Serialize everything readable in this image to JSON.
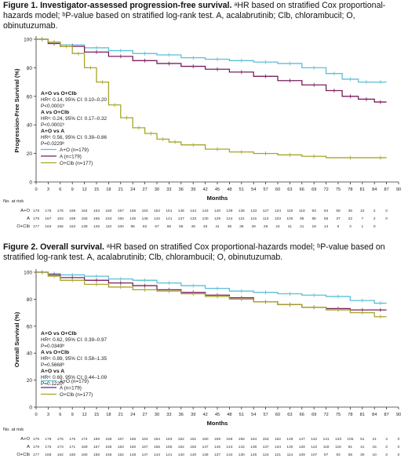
{
  "figures": [
    {
      "caption_bold": "Figure 1. Investigator-assessed progression-free survival.",
      "caption_rest": " ᵃHR based on stratified Cox proportional-hazards model; ᵇP-value based on stratified log-rank test. A, acalabrutinib; Clb, chlorambucil; O, obinutuzumab."
    },
    {
      "caption_bold": "Figure 2. Overall survival.",
      "caption_rest": " ᵃHR based on stratified Cox proportional-hazards model; ᵇP-value based on stratified log-rank test. A, acalabrutinib; Clb, chlorambucil; O, obinutuzumab."
    }
  ],
  "colors": {
    "A+O": "#5bbfd9",
    "A": "#7a1f5c",
    "O+Clb": "#a6a52a"
  },
  "chart_data": [
    {
      "type": "line",
      "ylabel": "Progression-Free Survival (%)",
      "xlabel": "Months",
      "xlim": [
        0,
        90
      ],
      "ylim": [
        0,
        100
      ],
      "xticks": [
        0,
        3,
        6,
        9,
        12,
        15,
        18,
        21,
        24,
        27,
        30,
        33,
        36,
        39,
        42,
        45,
        48,
        51,
        54,
        57,
        60,
        63,
        66,
        69,
        72,
        75,
        78,
        81,
        84,
        87,
        90
      ],
      "yticks": [
        0,
        20,
        40,
        60,
        80,
        100
      ],
      "legend": [
        "A+O (n=179)",
        "A (n=179)",
        "O+Clb (n=177)"
      ],
      "legend_position": "bottom-left",
      "stats": [
        {
          "title": "A+O vs O+Clb",
          "lines": [
            "HRᵃ: 0.14, 95% CI: 0.10–0.20",
            "P<0.0001ᵇ"
          ]
        },
        {
          "title": "A vs O+Clb",
          "lines": [
            "HRᵃ: 0.24, 95% CI: 0.17–0.32",
            "P<0.0001ᵇ"
          ]
        },
        {
          "title": "A+O vs A",
          "lines": [
            "HRᵃ: 0.56, 95% CI: 0.39–0.86",
            "P=0.0229ᵇ"
          ]
        }
      ],
      "series": [
        {
          "name": "A+O",
          "x": [
            0,
            3,
            6,
            12,
            18,
            24,
            30,
            36,
            42,
            48,
            54,
            60,
            66,
            72,
            76,
            80,
            84,
            87
          ],
          "y": [
            100,
            98,
            96,
            94,
            92,
            90,
            89,
            87,
            86,
            85,
            84,
            83,
            80,
            76,
            72,
            70,
            70,
            70
          ]
        },
        {
          "name": "A",
          "x": [
            0,
            3,
            6,
            12,
            18,
            24,
            30,
            36,
            42,
            48,
            54,
            60,
            66,
            72,
            76,
            80,
            84,
            87
          ],
          "y": [
            100,
            97,
            95,
            91,
            88,
            85,
            83,
            81,
            79,
            77,
            74,
            71,
            68,
            64,
            60,
            58,
            56,
            56
          ]
        },
        {
          "name": "O+Clb",
          "x": [
            0,
            3,
            6,
            9,
            12,
            15,
            18,
            21,
            24,
            27,
            30,
            33,
            36,
            42,
            48,
            54,
            60,
            66,
            72,
            84,
            87
          ],
          "y": [
            100,
            98,
            95,
            90,
            80,
            70,
            54,
            45,
            38,
            34,
            30,
            28,
            26,
            23,
            21,
            20,
            19,
            18,
            17,
            17,
            17
          ]
        }
      ],
      "at_risk_label": "No. at risk",
      "at_risk": [
        {
          "group": "A+O",
          "counts": [
            "179",
            "175",
            "176",
            "169",
            "164",
            "163",
            "160",
            "157",
            "156",
            "153",
            "152",
            "151",
            "146",
            "144",
            "143",
            "140",
            "139",
            "136",
            "133",
            "127",
            "124",
            "119",
            "118",
            "93",
            "94",
            "59",
            "35",
            "10",
            "2",
            "0",
            ""
          ]
        },
        {
          "group": "A",
          "counts": [
            "179",
            "167",
            "163",
            "159",
            "156",
            "155",
            "153",
            "150",
            "145",
            "146",
            "142",
            "141",
            "137",
            "133",
            "130",
            "129",
            "124",
            "121",
            "115",
            "113",
            "103",
            "100",
            "95",
            "85",
            "56",
            "37",
            "22",
            "7",
            "2",
            "0",
            ""
          ]
        },
        {
          "group": "O+Clb",
          "counts": [
            "177",
            "163",
            "156",
            "153",
            "139",
            "125",
            "110",
            "100",
            "86",
            "82",
            "67",
            "66",
            "58",
            "49",
            "45",
            "41",
            "38",
            "38",
            "29",
            "26",
            "24",
            "21",
            "21",
            "18",
            "14",
            "6",
            "3",
            "1",
            "0",
            "",
            ""
          ]
        }
      ]
    },
    {
      "type": "line",
      "ylabel": "Overall Survival (%)",
      "xlabel": "Months",
      "xlim": [
        0,
        90
      ],
      "ylim": [
        0,
        100
      ],
      "xticks": [
        0,
        3,
        6,
        9,
        12,
        15,
        18,
        21,
        24,
        27,
        30,
        33,
        36,
        39,
        42,
        45,
        48,
        51,
        54,
        57,
        60,
        63,
        66,
        69,
        72,
        75,
        78,
        81,
        84,
        87,
        90
      ],
      "yticks": [
        0,
        20,
        40,
        60,
        80,
        100
      ],
      "legend": [
        "A+O (n=179)",
        "A (n=179)",
        "O+Clb (n=177)"
      ],
      "legend_position": "bottom-left",
      "stats": [
        {
          "title": "A+O vs O+Clb",
          "lines": [
            "HRᵃ: 0.62, 95% CI: 0.39–0.97",
            "P=0.0349ᵇ"
          ]
        },
        {
          "title": "A vs O+Clb",
          "lines": [
            "HRᵃ: 0.89, 95% CI: 0.58–1.35",
            "P=0.5668ᵇ"
          ]
        },
        {
          "title": "A+O vs A",
          "lines": [
            "HRᵃ: 0.69, 95% CI: 0.44–1.09",
            "P=0.1220ᵇ"
          ]
        }
      ],
      "series": [
        {
          "name": "A+O",
          "x": [
            0,
            3,
            6,
            12,
            18,
            24,
            30,
            36,
            42,
            48,
            54,
            60,
            66,
            72,
            78,
            84,
            87
          ],
          "y": [
            100,
            99,
            98,
            97,
            95,
            94,
            92,
            90,
            88,
            86,
            85,
            84,
            83,
            82,
            79,
            77,
            77
          ]
        },
        {
          "name": "A",
          "x": [
            0,
            3,
            6,
            12,
            18,
            24,
            30,
            36,
            42,
            48,
            54,
            60,
            66,
            72,
            78,
            84,
            87
          ],
          "y": [
            100,
            98,
            96,
            94,
            92,
            90,
            87,
            85,
            83,
            81,
            78,
            76,
            74,
            73,
            72,
            72,
            72
          ]
        },
        {
          "name": "O+Clb",
          "x": [
            0,
            3,
            6,
            12,
            18,
            24,
            30,
            36,
            42,
            48,
            54,
            60,
            66,
            72,
            78,
            84,
            87
          ],
          "y": [
            100,
            97,
            94,
            91,
            89,
            87,
            86,
            84,
            82,
            80,
            78,
            76,
            74,
            72,
            70,
            67,
            67
          ]
        }
      ],
      "at_risk_label": "No. at risk",
      "at_risk": [
        {
          "group": "A+O",
          "counts": [
            "179",
            "178",
            "176",
            "175",
            "174",
            "169",
            "168",
            "167",
            "165",
            "164",
            "164",
            "163",
            "162",
            "161",
            "160",
            "159",
            "158",
            "156",
            "154",
            "153",
            "152",
            "148",
            "147",
            "142",
            "141",
            "133",
            "105",
            "51",
            "21",
            "4",
            "0"
          ]
        },
        {
          "group": "A",
          "counts": [
            "179",
            "175",
            "173",
            "171",
            "169",
            "167",
            "165",
            "163",
            "160",
            "157",
            "156",
            "155",
            "152",
            "150",
            "147",
            "146",
            "143",
            "142",
            "138",
            "137",
            "134",
            "130",
            "128",
            "122",
            "118",
            "118",
            "81",
            "41",
            "15",
            "3",
            "0"
          ]
        },
        {
          "group": "O+Clb",
          "counts": [
            "177",
            "168",
            "162",
            "160",
            "160",
            "158",
            "156",
            "152",
            "148",
            "147",
            "144",
            "141",
            "140",
            "140",
            "139",
            "137",
            "134",
            "130",
            "125",
            "124",
            "121",
            "114",
            "109",
            "107",
            "97",
            "93",
            "58",
            "30",
            "10",
            "3",
            "0"
          ]
        }
      ]
    }
  ]
}
